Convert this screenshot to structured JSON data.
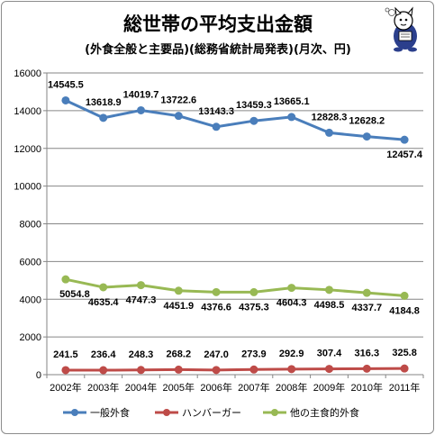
{
  "chart_data": {
    "type": "line",
    "title": "総世帯の平均支出金額",
    "subtitle": "(外食全般と主要品)(総務省統計局発表)(月次、円)",
    "categories": [
      "2002年",
      "2003年",
      "2004年",
      "2005年",
      "2006年",
      "2007年",
      "2008年",
      "2009年",
      "2010年",
      "2011年"
    ],
    "ylim": [
      0,
      16000
    ],
    "yticks": [
      0,
      2000,
      4000,
      6000,
      8000,
      10000,
      12000,
      14000,
      16000
    ],
    "grid": true,
    "legend_position": "bottom",
    "series": [
      {
        "name": "一般外食",
        "color": "#4a7ebb",
        "values": [
          14545.5,
          13618.9,
          14019.7,
          13722.6,
          13143.3,
          13459.3,
          13665.1,
          12828.3,
          12628.2,
          12457.4
        ],
        "labels": [
          "14545.5",
          "13618.9",
          "14019.7",
          "13722.6",
          "13143.3",
          "13459.3",
          "13665.1",
          "12828.3",
          "12628.2",
          "12457.4"
        ]
      },
      {
        "name": "ハンバーガー",
        "color": "#be4b48",
        "values": [
          241.5,
          236.4,
          248.3,
          268.2,
          247.0,
          273.9,
          292.9,
          307.4,
          316.3,
          325.8
        ],
        "labels": [
          "241.5",
          "236.4",
          "248.3",
          "268.2",
          "247.0",
          "273.9",
          "292.9",
          "307.4",
          "316.3",
          "325.8"
        ]
      },
      {
        "name": "他の主食的外食",
        "color": "#98b954",
        "values": [
          5054.8,
          4635.4,
          4747.3,
          4451.9,
          4376.6,
          4375.3,
          4604.3,
          4498.5,
          4337.7,
          4184.8
        ],
        "labels": [
          "5054.8",
          "4635.4",
          "4747.3",
          "4451.9",
          "4376.6",
          "4375.3",
          "4604.3",
          "4498.5",
          "4337.7",
          "4184.8"
        ]
      }
    ]
  },
  "mascot": {
    "icon": "cat-mascot-icon"
  }
}
